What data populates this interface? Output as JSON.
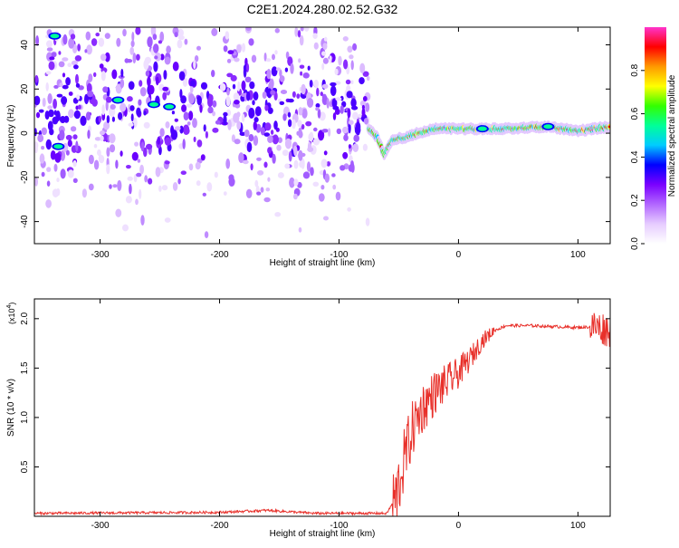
{
  "figure_title": "C2E1.2024.280.02.52.G32",
  "chart_data": [
    {
      "type": "heatmap",
      "title": "",
      "xlabel": "Height of straight line (km)",
      "ylabel": "Frequency (Hz)",
      "xlim": [
        -355,
        127
      ],
      "ylim": [
        -50,
        48
      ],
      "xticks": [
        -300,
        -200,
        -100,
        0,
        100
      ],
      "yticks": [
        -40,
        -20,
        0,
        20,
        40
      ],
      "colorbar": {
        "label": "Normalized spectral amplitude",
        "range": [
          0,
          1
        ],
        "ticks": [
          0.0,
          0.2,
          0.4,
          0.6,
          0.8
        ],
        "colormap": [
          "#ffffff",
          "#e6ccff",
          "#b266ff",
          "#7a00ff",
          "#0000ff",
          "#00ccff",
          "#00ff99",
          "#33ff00",
          "#ffff00",
          "#ff9900",
          "#ff0000",
          "#ff33cc"
        ]
      },
      "description_trace": {
        "scatter_region_x": [
          -355,
          -75
        ],
        "scatter_region_y": [
          -50,
          48
        ],
        "ridge": [
          {
            "x": -75,
            "y": 2
          },
          {
            "x": -68,
            "y": -2
          },
          {
            "x": -62,
            "y": -10
          },
          {
            "x": -56,
            "y": -3
          },
          {
            "x": -45,
            "y": -2
          },
          {
            "x": -35,
            "y": 0
          },
          {
            "x": -20,
            "y": 2
          },
          {
            "x": 0,
            "y": 2
          },
          {
            "x": 40,
            "y": 2
          },
          {
            "x": 75,
            "y": 3
          },
          {
            "x": 100,
            "y": 1
          },
          {
            "x": 127,
            "y": 3
          }
        ],
        "hotspots": [
          {
            "x": -338,
            "y": 44
          },
          {
            "x": -335,
            "y": -6
          },
          {
            "x": -255,
            "y": 13
          },
          {
            "x": -242,
            "y": 12
          },
          {
            "x": -285,
            "y": 15
          },
          {
            "x": 20,
            "y": 2
          },
          {
            "x": 75,
            "y": 3
          }
        ]
      }
    },
    {
      "type": "line",
      "title": "",
      "xlabel": "Height of straight line (km)",
      "ylabel": "SNR (10 * v/v)",
      "yscale_label": "(x10",
      "yscale_exp": "4",
      "yscale_close": ")",
      "xlim": [
        -355,
        127
      ],
      "ylim": [
        0,
        2.2
      ],
      "xticks": [
        -300,
        -200,
        -100,
        0,
        100
      ],
      "yticks": [
        0.5,
        1.0,
        1.5,
        2.0
      ],
      "color": "#e8302a",
      "series_trend": [
        {
          "x": -355,
          "y": 0.03
        },
        {
          "x": -200,
          "y": 0.04
        },
        {
          "x": -160,
          "y": 0.06
        },
        {
          "x": -120,
          "y": 0.03
        },
        {
          "x": -60,
          "y": 0.03
        },
        {
          "x": -52,
          "y": 0.2
        },
        {
          "x": -45,
          "y": 0.6
        },
        {
          "x": -38,
          "y": 0.9
        },
        {
          "x": -30,
          "y": 1.1
        },
        {
          "x": -20,
          "y": 1.25
        },
        {
          "x": -10,
          "y": 1.35
        },
        {
          "x": 0,
          "y": 1.45
        },
        {
          "x": 10,
          "y": 1.6
        },
        {
          "x": 20,
          "y": 1.78
        },
        {
          "x": 30,
          "y": 1.88
        },
        {
          "x": 40,
          "y": 1.93
        },
        {
          "x": 60,
          "y": 1.93
        },
        {
          "x": 80,
          "y": 1.92
        },
        {
          "x": 100,
          "y": 1.91
        },
        {
          "x": 115,
          "y": 1.92
        },
        {
          "x": 127,
          "y": 1.88
        }
      ]
    }
  ]
}
